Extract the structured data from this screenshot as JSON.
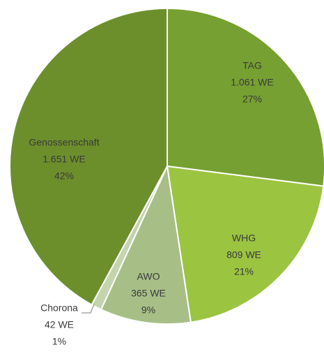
{
  "chart_data": {
    "type": "pie",
    "categories": [
      "TAG",
      "WHG",
      "AWO",
      "Chorona",
      "Genossenschaft"
    ],
    "values": [
      1061,
      809,
      365,
      42,
      1651
    ],
    "value_labels": [
      "1.061 WE",
      "809 WE",
      "365 WE",
      "42 WE",
      "1.651 WE"
    ],
    "percent_labels": [
      "27%",
      "21%",
      "9%",
      "1%",
      "42%"
    ],
    "colors": [
      "#76a031",
      "#9bc441",
      "#a7bf87",
      "#c4d4ae",
      "#6c8f2c"
    ]
  }
}
